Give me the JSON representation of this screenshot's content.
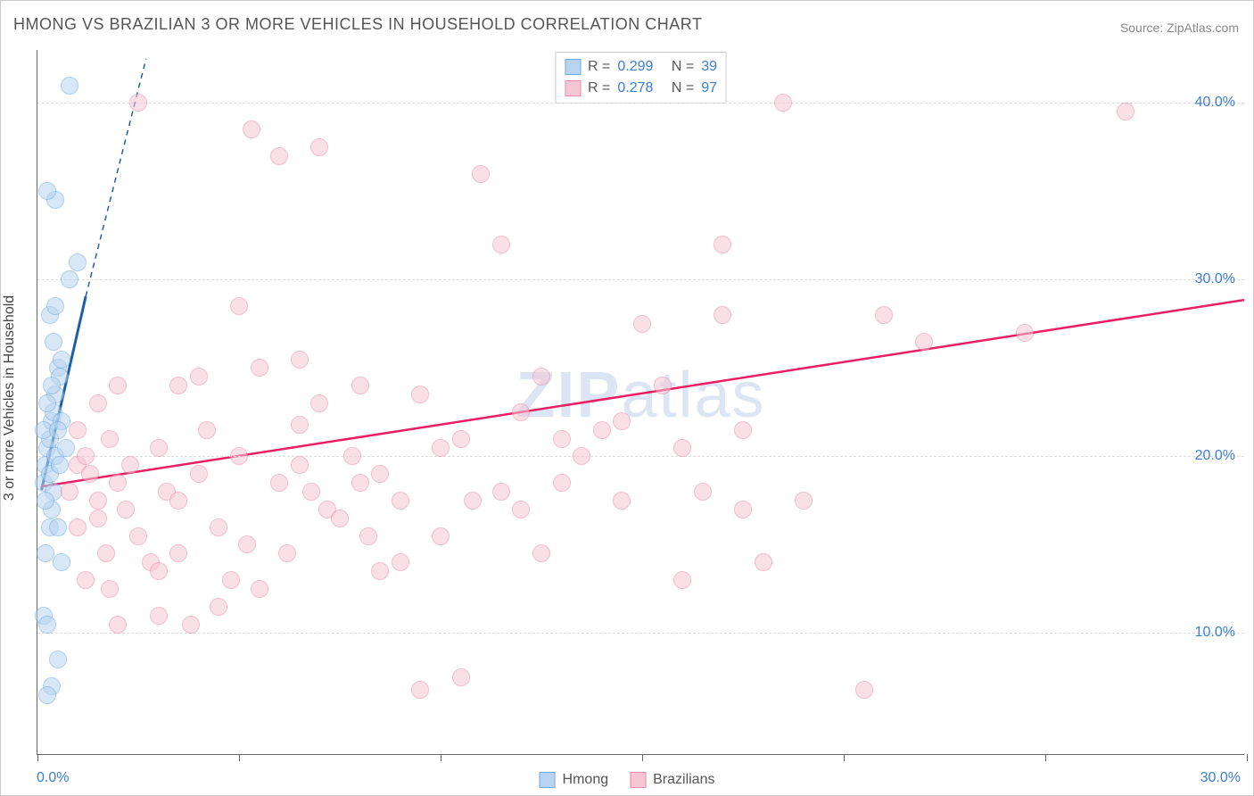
{
  "title": "HMONG VS BRAZILIAN 3 OR MORE VEHICLES IN HOUSEHOLD CORRELATION CHART",
  "source": "Source: ZipAtlas.com",
  "ylabel": "3 or more Vehicles in Household",
  "watermark_a": "ZIP",
  "watermark_b": "atlas",
  "chart": {
    "type": "scatter",
    "background_color": "#ffffff",
    "grid_color": "#dddddd",
    "axis_color": "#666666",
    "xlim": [
      0,
      30
    ],
    "ylim": [
      3,
      43
    ],
    "xticks": [
      0,
      5,
      10,
      15,
      20,
      25,
      30
    ],
    "xtick_labels": {
      "0": "0.0%",
      "30": "30.0%"
    },
    "yticks": [
      10,
      20,
      30,
      40
    ],
    "ytick_labels": {
      "10": "10.0%",
      "20": "20.0%",
      "30": "30.0%",
      "40": "40.0%"
    },
    "marker_radius": 10,
    "marker_border_width": 1.5,
    "series": [
      {
        "name": "Hmong",
        "fill_color": "#b8d4f0",
        "border_color": "#6ea8e0",
        "fill_opacity": 0.55,
        "R": "0.299",
        "N": "39",
        "trend": {
          "color": "#1f5fa8",
          "width": 3,
          "solid_from": [
            0.1,
            18.0
          ],
          "solid_to": [
            1.2,
            29.0
          ],
          "dash_from": [
            1.2,
            29.0
          ],
          "dash_to": [
            2.7,
            42.5
          ]
        },
        "points": [
          [
            0.15,
            18.5
          ],
          [
            0.2,
            19.5
          ],
          [
            0.25,
            20.5
          ],
          [
            0.3,
            21.0
          ],
          [
            0.35,
            22.0
          ],
          [
            0.4,
            22.5
          ],
          [
            0.45,
            23.5
          ],
          [
            0.5,
            25.0
          ],
          [
            0.35,
            17.0
          ],
          [
            0.3,
            19.0
          ],
          [
            0.45,
            20.0
          ],
          [
            0.55,
            24.5
          ],
          [
            0.6,
            25.5
          ],
          [
            0.8,
            30.0
          ],
          [
            1.0,
            31.0
          ],
          [
            0.4,
            18.0
          ],
          [
            0.3,
            16.0
          ],
          [
            0.2,
            17.5
          ],
          [
            0.15,
            21.5
          ],
          [
            0.25,
            23.0
          ],
          [
            0.6,
            14.0
          ],
          [
            0.5,
            16.0
          ],
          [
            0.2,
            14.5
          ],
          [
            0.15,
            11.0
          ],
          [
            0.25,
            10.5
          ],
          [
            0.5,
            8.5
          ],
          [
            0.35,
            7.0
          ],
          [
            0.25,
            6.5
          ],
          [
            0.45,
            34.5
          ],
          [
            0.25,
            35.0
          ],
          [
            0.8,
            41.0
          ],
          [
            0.55,
            19.5
          ],
          [
            0.35,
            24.0
          ],
          [
            0.6,
            22.0
          ],
          [
            0.7,
            20.5
          ],
          [
            0.5,
            21.5
          ],
          [
            0.4,
            26.5
          ],
          [
            0.3,
            28.0
          ],
          [
            0.45,
            28.5
          ]
        ]
      },
      {
        "name": "Brazilians",
        "fill_color": "#f5c6d3",
        "border_color": "#e88aa8",
        "fill_opacity": 0.55,
        "R": "0.278",
        "N": "97",
        "trend": {
          "color": "#e91e63",
          "width": 2.5,
          "solid_from": [
            0.1,
            18.2
          ],
          "solid_to": [
            30.0,
            28.8
          ]
        },
        "points": [
          [
            1.0,
            19.5
          ],
          [
            1.2,
            20.0
          ],
          [
            0.8,
            18.0
          ],
          [
            1.5,
            17.5
          ],
          [
            1.3,
            19.0
          ],
          [
            1.8,
            21.0
          ],
          [
            2.0,
            18.5
          ],
          [
            1.5,
            16.5
          ],
          [
            2.2,
            17.0
          ],
          [
            1.0,
            16.0
          ],
          [
            1.7,
            14.5
          ],
          [
            2.5,
            15.5
          ],
          [
            2.8,
            14.0
          ],
          [
            3.0,
            13.5
          ],
          [
            2.3,
            19.5
          ],
          [
            3.2,
            18.0
          ],
          [
            3.5,
            24.0
          ],
          [
            3.0,
            20.5
          ],
          [
            3.5,
            17.5
          ],
          [
            4.0,
            19.0
          ],
          [
            4.2,
            21.5
          ],
          [
            4.5,
            16.0
          ],
          [
            4.0,
            24.5
          ],
          [
            4.8,
            13.0
          ],
          [
            5.0,
            20.0
          ],
          [
            5.2,
            15.0
          ],
          [
            5.5,
            12.5
          ],
          [
            5.0,
            28.5
          ],
          [
            5.5,
            25.0
          ],
          [
            6.0,
            18.5
          ],
          [
            5.3,
            38.5
          ],
          [
            6.2,
            14.5
          ],
          [
            6.5,
            19.5
          ],
          [
            6.0,
            37.0
          ],
          [
            6.8,
            18.0
          ],
          [
            7.0,
            23.0
          ],
          [
            7.2,
            17.0
          ],
          [
            6.5,
            21.8
          ],
          [
            7.5,
            16.5
          ],
          [
            8.0,
            18.5
          ],
          [
            7.8,
            20.0
          ],
          [
            8.2,
            15.5
          ],
          [
            8.5,
            13.5
          ],
          [
            8.0,
            24.0
          ],
          [
            8.5,
            19.0
          ],
          [
            9.0,
            17.5
          ],
          [
            9.5,
            23.5
          ],
          [
            9.0,
            14.0
          ],
          [
            9.5,
            6.8
          ],
          [
            10.0,
            20.5
          ],
          [
            10.0,
            15.5
          ],
          [
            10.5,
            7.5
          ],
          [
            10.5,
            21.0
          ],
          [
            11.0,
            36.0
          ],
          [
            10.8,
            17.5
          ],
          [
            11.5,
            18.0
          ],
          [
            11.5,
            32.0
          ],
          [
            12.0,
            22.5
          ],
          [
            12.5,
            24.5
          ],
          [
            12.0,
            17.0
          ],
          [
            12.5,
            14.5
          ],
          [
            13.0,
            21.0
          ],
          [
            13.5,
            20.0
          ],
          [
            13.0,
            18.5
          ],
          [
            14.0,
            21.5
          ],
          [
            14.5,
            17.5
          ],
          [
            15.0,
            27.5
          ],
          [
            15.5,
            24.0
          ],
          [
            14.5,
            22.0
          ],
          [
            16.0,
            20.5
          ],
          [
            16.5,
            18.0
          ],
          [
            17.0,
            32.0
          ],
          [
            17.5,
            17.0
          ],
          [
            17.0,
            28.0
          ],
          [
            16.0,
            13.0
          ],
          [
            18.0,
            14.0
          ],
          [
            18.5,
            40.0
          ],
          [
            17.5,
            21.5
          ],
          [
            19.0,
            17.5
          ],
          [
            21.0,
            28.0
          ],
          [
            22.0,
            26.5
          ],
          [
            20.5,
            6.8
          ],
          [
            24.5,
            27.0
          ],
          [
            27.0,
            39.5
          ],
          [
            2.0,
            10.5
          ],
          [
            3.0,
            11.0
          ],
          [
            3.8,
            10.5
          ],
          [
            4.5,
            11.5
          ],
          [
            1.2,
            13.0
          ],
          [
            1.8,
            12.5
          ],
          [
            3.5,
            14.5
          ],
          [
            2.5,
            40.0
          ],
          [
            6.5,
            25.5
          ],
          [
            7.0,
            37.5
          ],
          [
            1.0,
            21.5
          ],
          [
            1.5,
            23.0
          ],
          [
            2.0,
            24.0
          ]
        ]
      }
    ]
  },
  "legend_bottom": [
    "Hmong",
    "Brazilians"
  ],
  "colors": {
    "link_blue": "#3b7dd8",
    "text_gray": "#555555"
  }
}
